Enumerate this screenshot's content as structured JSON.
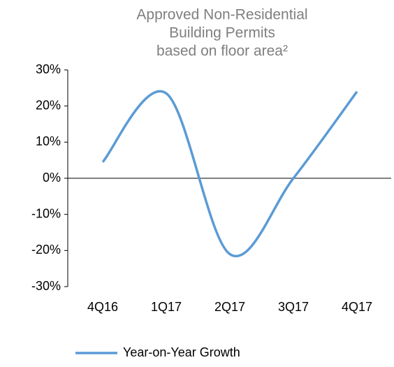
{
  "chart_data": {
    "type": "line",
    "title": [
      "Approved Non-Residential",
      "Building Permits",
      "based on floor area²"
    ],
    "categories": [
      "4Q16",
      "1Q17",
      "2Q17",
      "3Q17",
      "4Q17"
    ],
    "series": [
      {
        "name": "Year-on-Year Growth",
        "color": "#5b9bd5",
        "values": [
          4.5,
          23.5,
          -21,
          0,
          24
        ]
      }
    ],
    "ylim": [
      -30,
      30
    ],
    "yticks": [
      {
        "value": -30,
        "label": "-30%"
      },
      {
        "value": -20,
        "label": "-20%"
      },
      {
        "value": -10,
        "label": "-10%"
      },
      {
        "value": 0,
        "label": "0%"
      },
      {
        "value": 10,
        "label": "10%"
      },
      {
        "value": 20,
        "label": "20%"
      },
      {
        "value": 30,
        "label": "30%"
      }
    ],
    "legend": "bottom"
  }
}
